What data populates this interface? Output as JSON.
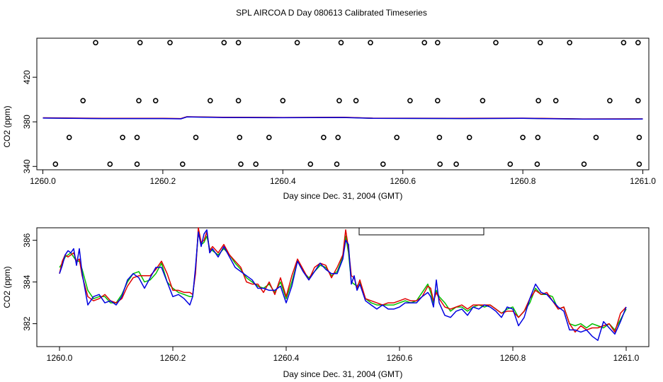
{
  "figure_title": "SPL AIRCOA D  Day 080613  Calibrated Timeseries",
  "chart_data": [
    {
      "type": "scatter",
      "title": "",
      "xlabel": "Day since Dec. 31, 2004 (GMT)",
      "ylabel": "CO2 (ppm)",
      "xlim": [
        1259.99,
        1261.01
      ],
      "ylim": [
        337,
        455
      ],
      "x_ticks": [
        1260.0,
        1260.2,
        1260.4,
        1260.6,
        1260.8,
        1261.0
      ],
      "x_tick_labels": [
        "1260.0",
        "1260.2",
        "1260.4",
        "1260.6",
        "1260.8",
        "1261.0"
      ],
      "y_ticks": [
        340,
        380,
        420
      ],
      "y_tick_labels": [
        "340",
        "380",
        "420"
      ],
      "grid": false,
      "circles": [
        {
          "x": 1260.088,
          "y": 451
        },
        {
          "x": 1260.162,
          "y": 451
        },
        {
          "x": 1260.212,
          "y": 451
        },
        {
          "x": 1260.302,
          "y": 451
        },
        {
          "x": 1260.326,
          "y": 451
        },
        {
          "x": 1260.424,
          "y": 451
        },
        {
          "x": 1260.497,
          "y": 451
        },
        {
          "x": 1260.546,
          "y": 451
        },
        {
          "x": 1260.636,
          "y": 451
        },
        {
          "x": 1260.658,
          "y": 451
        },
        {
          "x": 1260.755,
          "y": 451
        },
        {
          "x": 1260.829,
          "y": 451
        },
        {
          "x": 1260.878,
          "y": 451
        },
        {
          "x": 1260.968,
          "y": 451
        },
        {
          "x": 1260.992,
          "y": 451
        },
        {
          "x": 1260.067,
          "y": 399
        },
        {
          "x": 1260.16,
          "y": 399
        },
        {
          "x": 1260.188,
          "y": 399
        },
        {
          "x": 1260.279,
          "y": 399
        },
        {
          "x": 1260.326,
          "y": 399
        },
        {
          "x": 1260.4,
          "y": 399
        },
        {
          "x": 1260.494,
          "y": 399
        },
        {
          "x": 1260.522,
          "y": 399
        },
        {
          "x": 1260.612,
          "y": 399
        },
        {
          "x": 1260.658,
          "y": 399
        },
        {
          "x": 1260.733,
          "y": 399
        },
        {
          "x": 1260.826,
          "y": 399
        },
        {
          "x": 1260.855,
          "y": 399
        },
        {
          "x": 1260.945,
          "y": 399
        },
        {
          "x": 1260.992,
          "y": 399
        },
        {
          "x": 1260.044,
          "y": 366
        },
        {
          "x": 1260.133,
          "y": 366
        },
        {
          "x": 1260.157,
          "y": 366
        },
        {
          "x": 1260.255,
          "y": 366
        },
        {
          "x": 1260.328,
          "y": 366
        },
        {
          "x": 1260.377,
          "y": 366
        },
        {
          "x": 1260.468,
          "y": 366
        },
        {
          "x": 1260.492,
          "y": 366
        },
        {
          "x": 1260.59,
          "y": 366
        },
        {
          "x": 1260.661,
          "y": 366
        },
        {
          "x": 1260.711,
          "y": 366
        },
        {
          "x": 1260.8,
          "y": 366
        },
        {
          "x": 1260.825,
          "y": 366
        },
        {
          "x": 1260.922,
          "y": 366
        },
        {
          "x": 1260.994,
          "y": 366
        },
        {
          "x": 1260.021,
          "y": 342
        },
        {
          "x": 1260.112,
          "y": 342
        },
        {
          "x": 1260.157,
          "y": 342
        },
        {
          "x": 1260.233,
          "y": 342
        },
        {
          "x": 1260.33,
          "y": 342
        },
        {
          "x": 1260.355,
          "y": 342
        },
        {
          "x": 1260.446,
          "y": 342
        },
        {
          "x": 1260.49,
          "y": 342
        },
        {
          "x": 1260.567,
          "y": 342
        },
        {
          "x": 1260.662,
          "y": 342
        },
        {
          "x": 1260.689,
          "y": 342
        },
        {
          "x": 1260.779,
          "y": 342
        },
        {
          "x": 1260.824,
          "y": 342
        },
        {
          "x": 1260.902,
          "y": 342
        },
        {
          "x": 1260.994,
          "y": 342
        }
      ],
      "series": [
        {
          "name": "green",
          "color": "#00c000",
          "x": [
            1260.0,
            1260.1,
            1260.2,
            1260.23,
            1260.24,
            1260.3,
            1260.4,
            1260.5,
            1260.55,
            1260.7,
            1260.8,
            1260.9,
            1261.0
          ],
          "values": [
            383.5,
            383,
            383,
            382.8,
            384.5,
            384,
            383.8,
            384,
            383.2,
            383,
            383.2,
            382.5,
            382.6
          ]
        },
        {
          "name": "red",
          "color": "#e00000",
          "x": [
            1260.0,
            1260.1,
            1260.2,
            1260.23,
            1260.24,
            1260.3,
            1260.4,
            1260.5,
            1260.55,
            1260.7,
            1260.8,
            1260.9,
            1261.0
          ],
          "values": [
            383.6,
            383.1,
            383.1,
            382.9,
            384.6,
            384.1,
            383.9,
            384.1,
            383.3,
            383.1,
            383.3,
            382.6,
            382.7
          ]
        },
        {
          "name": "blue",
          "color": "#0000e0",
          "x": [
            1260.0,
            1260.1,
            1260.2,
            1260.23,
            1260.24,
            1260.3,
            1260.4,
            1260.5,
            1260.55,
            1260.7,
            1260.8,
            1260.9,
            1261.0
          ],
          "values": [
            383.4,
            382.9,
            382.9,
            382.7,
            384.4,
            383.9,
            383.7,
            383.9,
            383.1,
            382.9,
            383.1,
            382.4,
            382.5
          ]
        }
      ]
    },
    {
      "type": "line",
      "title": "",
      "xlabel": "Day since Dec. 31, 2004 (GMT)",
      "ylabel": "CO2 (ppm)",
      "xlim": [
        1259.96,
        1261.04
      ],
      "ylim": [
        380.9,
        386.6
      ],
      "x_ticks": [
        1260.0,
        1260.2,
        1260.4,
        1260.6,
        1260.8,
        1261.0
      ],
      "x_tick_labels": [
        "1260.0",
        "1260.2",
        "1260.4",
        "1260.6",
        "1260.8",
        "1261.0"
      ],
      "y_ticks": [
        382,
        384,
        386
      ],
      "y_tick_labels": [
        "382",
        "384",
        "386"
      ],
      "grid": false,
      "legend_box": {
        "position": "top-center-right",
        "entries": []
      },
      "x": [
        1260.0,
        1260.005,
        1260.01,
        1260.015,
        1260.02,
        1260.025,
        1260.03,
        1260.035,
        1260.04,
        1260.05,
        1260.06,
        1260.07,
        1260.08,
        1260.09,
        1260.1,
        1260.11,
        1260.12,
        1260.13,
        1260.14,
        1260.15,
        1260.16,
        1260.17,
        1260.18,
        1260.19,
        1260.2,
        1260.21,
        1260.22,
        1260.23,
        1260.235,
        1260.24,
        1260.245,
        1260.25,
        1260.255,
        1260.26,
        1260.265,
        1260.27,
        1260.28,
        1260.29,
        1260.3,
        1260.31,
        1260.32,
        1260.33,
        1260.34,
        1260.35,
        1260.36,
        1260.37,
        1260.38,
        1260.39,
        1260.4,
        1260.41,
        1260.42,
        1260.43,
        1260.44,
        1260.45,
        1260.46,
        1260.47,
        1260.48,
        1260.49,
        1260.5,
        1260.505,
        1260.51,
        1260.515,
        1260.52,
        1260.525,
        1260.53,
        1260.54,
        1260.55,
        1260.56,
        1260.57,
        1260.58,
        1260.59,
        1260.6,
        1260.61,
        1260.62,
        1260.63,
        1260.64,
        1260.65,
        1260.655,
        1260.66,
        1260.665,
        1260.67,
        1260.68,
        1260.69,
        1260.7,
        1260.71,
        1260.72,
        1260.73,
        1260.74,
        1260.75,
        1260.76,
        1260.77,
        1260.78,
        1260.79,
        1260.8,
        1260.81,
        1260.82,
        1260.83,
        1260.84,
        1260.85,
        1260.86,
        1260.87,
        1260.88,
        1260.89,
        1260.9,
        1260.91,
        1260.92,
        1260.93,
        1260.94,
        1260.95,
        1260.96,
        1260.97,
        1260.98,
        1260.99,
        1261.0
      ],
      "series": [
        {
          "name": "green",
          "color": "#00c000",
          "values": [
            384.7,
            384.9,
            385.2,
            385.3,
            385.4,
            385.2,
            385.0,
            385.0,
            384.6,
            383.6,
            383.2,
            383.3,
            383.3,
            383.0,
            383.0,
            383.4,
            384.0,
            384.4,
            384.5,
            384.0,
            384.1,
            384.4,
            384.9,
            384.0,
            383.7,
            383.5,
            383.4,
            383.3,
            383.3,
            384.6,
            386.4,
            385.8,
            385.9,
            386.2,
            385.6,
            385.5,
            385.3,
            385.6,
            385.3,
            384.9,
            384.6,
            384.2,
            384.0,
            383.8,
            383.7,
            383.9,
            383.5,
            384.0,
            383.2,
            384.0,
            385.0,
            384.5,
            384.2,
            384.5,
            384.8,
            384.7,
            384.3,
            384.5,
            385.2,
            386.2,
            385.4,
            384.0,
            383.9,
            383.8,
            384.0,
            383.2,
            383.0,
            382.9,
            382.9,
            382.9,
            382.9,
            383.0,
            383.1,
            383.0,
            383.1,
            383.5,
            383.9,
            383.5,
            383.0,
            383.6,
            383.3,
            383.0,
            382.6,
            382.8,
            382.8,
            382.6,
            382.8,
            382.9,
            382.8,
            382.9,
            382.7,
            382.5,
            382.7,
            382.8,
            382.3,
            382.6,
            383.0,
            383.7,
            383.4,
            383.4,
            383.3,
            382.7,
            382.8,
            382.0,
            381.9,
            382.0,
            381.8,
            382.0,
            381.9,
            381.8,
            382.0,
            381.7,
            382.2,
            382.7
          ]
        },
        {
          "name": "red",
          "color": "#e00000",
          "values": [
            384.4,
            385.0,
            385.3,
            385.2,
            385.3,
            385.4,
            385.0,
            385.1,
            384.3,
            383.3,
            383.1,
            383.2,
            383.4,
            383.1,
            383.0,
            383.2,
            383.8,
            384.2,
            384.3,
            384.3,
            384.3,
            384.6,
            385.0,
            384.4,
            383.6,
            383.6,
            383.5,
            383.5,
            383.4,
            384.4,
            386.6,
            385.9,
            386.0,
            386.4,
            385.5,
            385.7,
            385.4,
            385.8,
            385.3,
            385.0,
            384.7,
            384.0,
            383.9,
            383.9,
            383.5,
            384.0,
            383.4,
            384.2,
            383.3,
            384.3,
            385.1,
            384.6,
            384.1,
            384.7,
            384.9,
            384.8,
            384.2,
            384.7,
            385.3,
            386.5,
            385.6,
            384.3,
            384.2,
            383.7,
            384.1,
            383.2,
            383.1,
            383.0,
            382.9,
            383.0,
            383.0,
            383.1,
            383.2,
            383.1,
            383.1,
            383.3,
            383.8,
            383.7,
            383.1,
            383.5,
            383.2,
            382.8,
            382.7,
            382.8,
            382.9,
            382.7,
            382.9,
            382.9,
            382.9,
            382.9,
            382.7,
            382.5,
            382.6,
            382.6,
            382.3,
            382.6,
            383.2,
            383.6,
            383.4,
            383.5,
            383.1,
            382.7,
            382.8,
            382.0,
            381.6,
            381.9,
            381.7,
            381.8,
            381.8,
            381.9,
            382.0,
            381.6,
            382.5,
            382.8
          ]
        },
        {
          "name": "blue",
          "color": "#0000e0",
          "values": [
            384.4,
            384.8,
            385.3,
            385.5,
            385.4,
            385.6,
            384.8,
            385.6,
            384.4,
            382.9,
            383.3,
            383.4,
            383.0,
            383.1,
            382.9,
            383.3,
            384.1,
            384.4,
            384.2,
            383.7,
            384.2,
            384.7,
            384.7,
            384.0,
            383.3,
            383.4,
            383.2,
            382.9,
            383.3,
            384.7,
            386.4,
            385.7,
            386.3,
            386.5,
            385.4,
            385.6,
            385.2,
            385.7,
            385.2,
            384.7,
            384.5,
            384.3,
            384.1,
            383.7,
            383.7,
            383.6,
            383.6,
            383.8,
            383.0,
            383.8,
            385.0,
            384.5,
            384.1,
            384.5,
            384.9,
            384.6,
            384.4,
            384.4,
            385.1,
            386.0,
            385.8,
            383.9,
            384.3,
            383.6,
            383.9,
            383.1,
            382.9,
            382.7,
            382.9,
            382.7,
            382.7,
            382.8,
            383.0,
            383.0,
            383.0,
            383.3,
            383.5,
            383.3,
            382.8,
            384.1,
            383.0,
            382.4,
            382.3,
            382.6,
            382.7,
            382.4,
            382.8,
            382.7,
            382.9,
            382.8,
            382.6,
            382.3,
            382.8,
            382.7,
            381.9,
            382.3,
            383.2,
            383.9,
            383.5,
            383.4,
            383.1,
            382.8,
            382.6,
            381.7,
            381.7,
            381.6,
            381.7,
            381.4,
            381.2,
            382.1,
            381.8,
            381.5,
            382.1,
            382.8
          ]
        }
      ]
    }
  ]
}
